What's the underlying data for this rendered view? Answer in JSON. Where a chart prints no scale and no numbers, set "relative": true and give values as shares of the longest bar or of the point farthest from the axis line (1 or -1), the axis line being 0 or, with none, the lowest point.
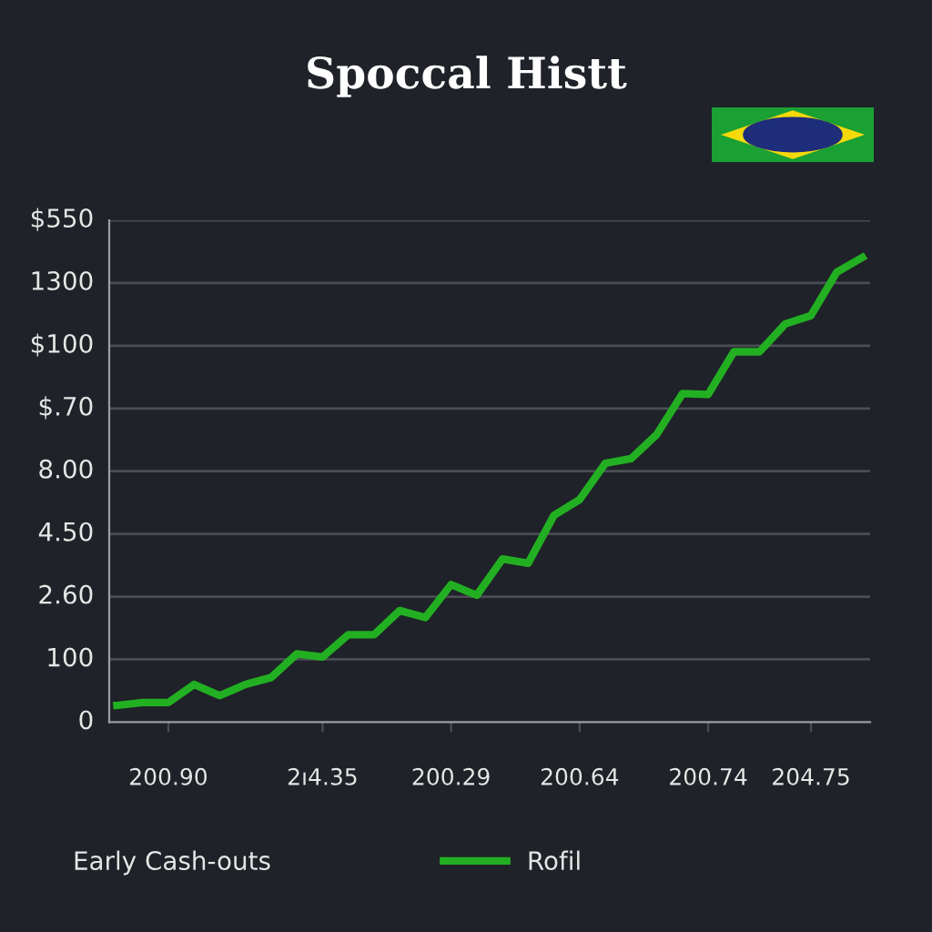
{
  "chart_data": {
    "type": "line",
    "title": "Spoccal Histt",
    "relative": true,
    "categories": [
      null,
      null,
      "200.90",
      null,
      null,
      null,
      null,
      null,
      "2ı4.35",
      null,
      null,
      null,
      null,
      "200.29",
      null,
      null,
      null,
      null,
      "200.64",
      null,
      null,
      null,
      null,
      "200.74",
      null,
      null,
      null,
      "204.75",
      null,
      null
    ],
    "series": [
      {
        "name": "Rofil",
        "color": "#22b022",
        "values": [
          0.036,
          0.042,
          0.042,
          0.081,
          0.057,
          0.081,
          0.096,
          0.147,
          0.14,
          0.188,
          0.188,
          0.24,
          0.225,
          0.296,
          0.273,
          0.351,
          0.342,
          0.445,
          0.479,
          0.557,
          0.567,
          0.619,
          0.707,
          0.705,
          0.797,
          0.797,
          0.857,
          0.875,
          0.968,
          1
        ]
      }
    ],
    "grid": "y",
    "legend": "bottom",
    "marker": "none",
    "line_style": "solid",
    "annotations": [
      "Early Cash-outs",
      "0",
      "100",
      "2.60",
      "4.50",
      "8.00",
      "$.70",
      "$100",
      "1300",
      "$550"
    ]
  }
}
